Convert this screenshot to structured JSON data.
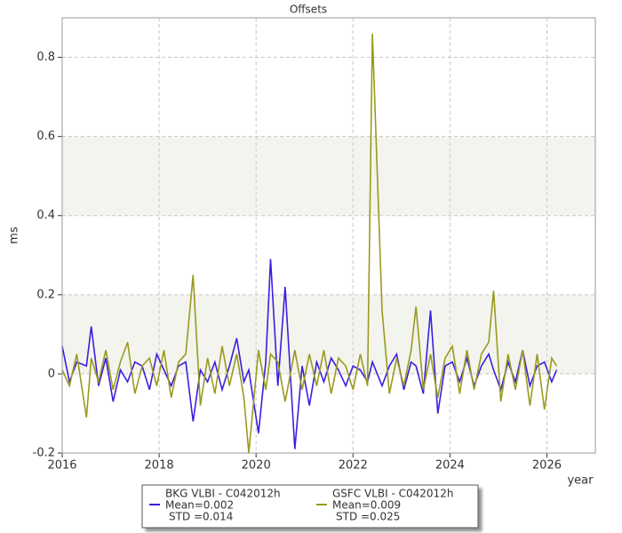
{
  "chart_data": {
    "type": "line",
    "title": "Offsets",
    "x_label": "year",
    "y_label": "ms",
    "xlim": [
      2016,
      2027
    ],
    "xticks": [
      2016,
      2018,
      2020,
      2022,
      2024,
      2026
    ],
    "ylim": [
      -0.2,
      0.9
    ],
    "yticks": [
      -0.2,
      0,
      0.2,
      0.4,
      0.6,
      0.8
    ],
    "grid": true,
    "bands": [
      [
        0,
        0.2
      ],
      [
        0.4,
        0.6
      ]
    ],
    "legend": "bottom",
    "series": [
      {
        "name": "BKG VLBI - C042012h",
        "stats": [
          "Mean=0.002",
          "STD =0.014"
        ],
        "color": "#3a1fe0",
        "x": [
          2016.0,
          2016.15,
          2016.3,
          2016.5,
          2016.6,
          2016.75,
          2016.9,
          2017.05,
          2017.2,
          2017.35,
          2017.5,
          2017.65,
          2017.8,
          2017.95,
          2018.1,
          2018.25,
          2018.4,
          2018.55,
          2018.7,
          2018.85,
          2019.0,
          2019.15,
          2019.3,
          2019.45,
          2019.6,
          2019.75,
          2019.85,
          2020.05,
          2020.2,
          2020.3,
          2020.45,
          2020.6,
          2020.8,
          2020.95,
          2021.1,
          2021.25,
          2021.4,
          2021.55,
          2021.7,
          2021.85,
          2022.0,
          2022.15,
          2022.3,
          2022.4,
          2022.6,
          2022.75,
          2022.9,
          2023.05,
          2023.2,
          2023.3,
          2023.45,
          2023.6,
          2023.75,
          2023.9,
          2024.05,
          2024.2,
          2024.35,
          2024.5,
          2024.65,
          2024.8,
          2024.9,
          2025.05,
          2025.2,
          2025.35,
          2025.5,
          2025.65,
          2025.8,
          2025.95,
          2026.1,
          2026.2
        ],
        "values": [
          0.07,
          -0.02,
          0.03,
          0.02,
          0.12,
          -0.03,
          0.04,
          -0.07,
          0.01,
          -0.02,
          0.03,
          0.02,
          -0.04,
          0.05,
          0.01,
          -0.03,
          0.02,
          0.03,
          -0.12,
          0.01,
          -0.02,
          0.03,
          -0.04,
          0.02,
          0.09,
          -0.02,
          0.01,
          -0.15,
          0.03,
          0.29,
          -0.03,
          0.22,
          -0.19,
          0.02,
          -0.08,
          0.03,
          -0.02,
          0.04,
          0.01,
          -0.03,
          0.02,
          0.01,
          -0.02,
          0.03,
          -0.03,
          0.02,
          0.05,
          -0.04,
          0.03,
          0.02,
          -0.05,
          0.16,
          -0.1,
          0.02,
          0.03,
          -0.02,
          0.04,
          -0.03,
          0.02,
          0.05,
          0.01,
          -0.04,
          0.03,
          -0.02,
          0.06,
          -0.03,
          0.02,
          0.03,
          -0.02,
          0.01
        ]
      },
      {
        "name": "GSFC VLBI - C042012h",
        "stats": [
          "Mean=0.009",
          "STD =0.025"
        ],
        "color": "#9a9a1e",
        "x": [
          2016.0,
          2016.15,
          2016.3,
          2016.5,
          2016.6,
          2016.75,
          2016.9,
          2017.05,
          2017.2,
          2017.35,
          2017.5,
          2017.65,
          2017.8,
          2017.95,
          2018.1,
          2018.25,
          2018.4,
          2018.55,
          2018.7,
          2018.85,
          2019.0,
          2019.15,
          2019.3,
          2019.45,
          2019.6,
          2019.75,
          2019.85,
          2020.05,
          2020.2,
          2020.3,
          2020.45,
          2020.6,
          2020.8,
          2020.95,
          2021.1,
          2021.25,
          2021.4,
          2021.55,
          2021.7,
          2021.85,
          2022.0,
          2022.15,
          2022.3,
          2022.4,
          2022.6,
          2022.75,
          2022.9,
          2023.05,
          2023.2,
          2023.3,
          2023.45,
          2023.6,
          2023.75,
          2023.9,
          2024.05,
          2024.2,
          2024.35,
          2024.5,
          2024.65,
          2024.8,
          2024.9,
          2025.05,
          2025.2,
          2025.35,
          2025.5,
          2025.65,
          2025.8,
          2025.95,
          2026.1,
          2026.2
        ],
        "values": [
          0.01,
          -0.03,
          0.05,
          -0.11,
          0.04,
          -0.02,
          0.06,
          -0.04,
          0.03,
          0.08,
          -0.05,
          0.02,
          0.04,
          -0.03,
          0.06,
          -0.06,
          0.03,
          0.05,
          0.25,
          -0.08,
          0.04,
          -0.05,
          0.07,
          -0.03,
          0.05,
          -0.06,
          -0.2,
          0.06,
          -0.04,
          0.05,
          0.03,
          -0.07,
          0.06,
          -0.04,
          0.05,
          -0.03,
          0.06,
          -0.05,
          0.04,
          0.02,
          -0.04,
          0.05,
          -0.03,
          0.86,
          0.16,
          -0.05,
          0.04,
          -0.03,
          0.06,
          0.17,
          -0.04,
          0.05,
          -0.06,
          0.04,
          0.07,
          -0.05,
          0.06,
          -0.04,
          0.05,
          0.08,
          0.21,
          -0.07,
          0.05,
          -0.04,
          0.06,
          -0.08,
          0.05,
          -0.09,
          0.04,
          0.02
        ]
      }
    ]
  }
}
